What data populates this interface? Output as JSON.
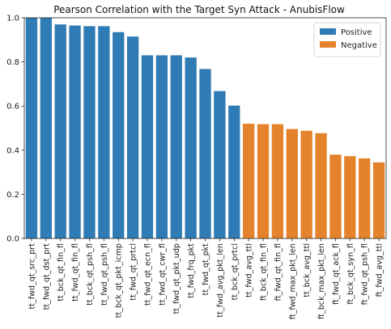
{
  "chart_data": {
    "type": "bar",
    "title": "Pearson Correlation with the Target Syn Attack - AnubisFlow",
    "xlabel": "",
    "ylabel": "",
    "ylim": [
      0,
      1.0
    ],
    "yticks": [
      "0.0",
      "0.2",
      "0.4",
      "0.6",
      "0.8",
      "1.0"
    ],
    "legend": {
      "placement": "top-right",
      "items": [
        {
          "label": "Positive",
          "color": "#2f7bb5"
        },
        {
          "label": "Negative",
          "color": "#e5832c"
        }
      ]
    },
    "bars": [
      {
        "category": "tt_fwd_qt_src_prt",
        "value": 1.0,
        "sign": "Positive"
      },
      {
        "category": "tt_fwd_qt_dst_prt",
        "value": 1.0,
        "sign": "Positive"
      },
      {
        "category": "tt_bck_qt_fin_fl",
        "value": 0.97,
        "sign": "Positive"
      },
      {
        "category": "tt_fwd_qt_fin_fl",
        "value": 0.965,
        "sign": "Positive"
      },
      {
        "category": "tt_bck_qt_psh_fl",
        "value": 0.962,
        "sign": "Positive"
      },
      {
        "category": "tt_fwd_qt_psh_fl",
        "value": 0.962,
        "sign": "Positive"
      },
      {
        "category": "tt_bck_qt_pkt_icmp",
        "value": 0.935,
        "sign": "Positive"
      },
      {
        "category": "tt_fwd_qt_prtcl",
        "value": 0.915,
        "sign": "Positive"
      },
      {
        "category": "tt_fwd_qt_ecn_fl",
        "value": 0.83,
        "sign": "Positive"
      },
      {
        "category": "tt_fwd_qt_cwr_fl",
        "value": 0.83,
        "sign": "Positive"
      },
      {
        "category": "tt_fwd_qt_pkt_udp",
        "value": 0.83,
        "sign": "Positive"
      },
      {
        "category": "tt_fwd_frq_pkt",
        "value": 0.82,
        "sign": "Positive"
      },
      {
        "category": "tt_fwd_qt_pkt",
        "value": 0.768,
        "sign": "Positive"
      },
      {
        "category": "tt_fwd_avg_pkt_len",
        "value": 0.668,
        "sign": "Positive"
      },
      {
        "category": "tt_bck_qt_prtcl",
        "value": 0.602,
        "sign": "Positive"
      },
      {
        "category": "tt_fwd_avg_ttl",
        "value": 0.52,
        "sign": "Negative"
      },
      {
        "category": "ft_bck_qt_fin_fl",
        "value": 0.518,
        "sign": "Negative"
      },
      {
        "category": "ft_fwd_qt_fin_fl",
        "value": 0.518,
        "sign": "Negative"
      },
      {
        "category": "ft_fwd_max_pkt_len",
        "value": 0.496,
        "sign": "Negative"
      },
      {
        "category": "tt_bck_avg_ttl",
        "value": 0.488,
        "sign": "Negative"
      },
      {
        "category": "ft_bck_max_pkt_len",
        "value": 0.477,
        "sign": "Negative"
      },
      {
        "category": "ft_fwd_qt_ack_fl",
        "value": 0.38,
        "sign": "Negative"
      },
      {
        "category": "ft_bck_qt_syn_fl",
        "value": 0.373,
        "sign": "Negative"
      },
      {
        "category": "ft_fwd_qt_psh_fl",
        "value": 0.363,
        "sign": "Negative"
      },
      {
        "category": "ft_fwd_avg_ttl",
        "value": 0.345,
        "sign": "Negative"
      }
    ]
  }
}
